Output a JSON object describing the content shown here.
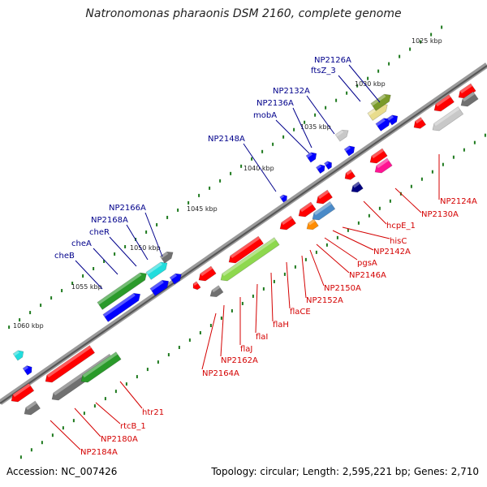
{
  "title": "Natronomonas pharaonis DSM 2160, complete genome",
  "accession": "Accession: NC_007426",
  "summary": "Topology: circular; Length: 2,595,221 bp; Genes: 2,710",
  "kbp_labels": [
    "1025 kbp",
    "1030 kbp",
    "1035 kbp",
    "1040 kbp",
    "1045 kbp",
    "1050 kbp",
    "1055 kbp",
    "1060 kbp"
  ],
  "forward_genes": [
    "NP2126A",
    "ftsZ_3",
    "NP2132A",
    "NP2136A",
    "mobA",
    "NP2148A",
    "NP2166A",
    "NP2168A",
    "cheR",
    "cheA",
    "cheB"
  ],
  "reverse_genes": [
    "NP2124A",
    "NP2130A",
    "hcpE_1",
    "hisC",
    "NP2142A",
    "pgsA",
    "NP2146A",
    "NP2150A",
    "NP2152A",
    "flaCE",
    "flaH",
    "flaI",
    "flaJ",
    "NP2162A",
    "NP2164A",
    "htr21",
    "rtcB_1",
    "NP2180A",
    "NP2184A"
  ],
  "colors": {
    "backbone": "#808080",
    "forward_label": "#00008b",
    "reverse_label": "#d40000",
    "tick": "#1e7a1e",
    "cds": "#ff0000",
    "cds_forward": "#0000ff"
  }
}
